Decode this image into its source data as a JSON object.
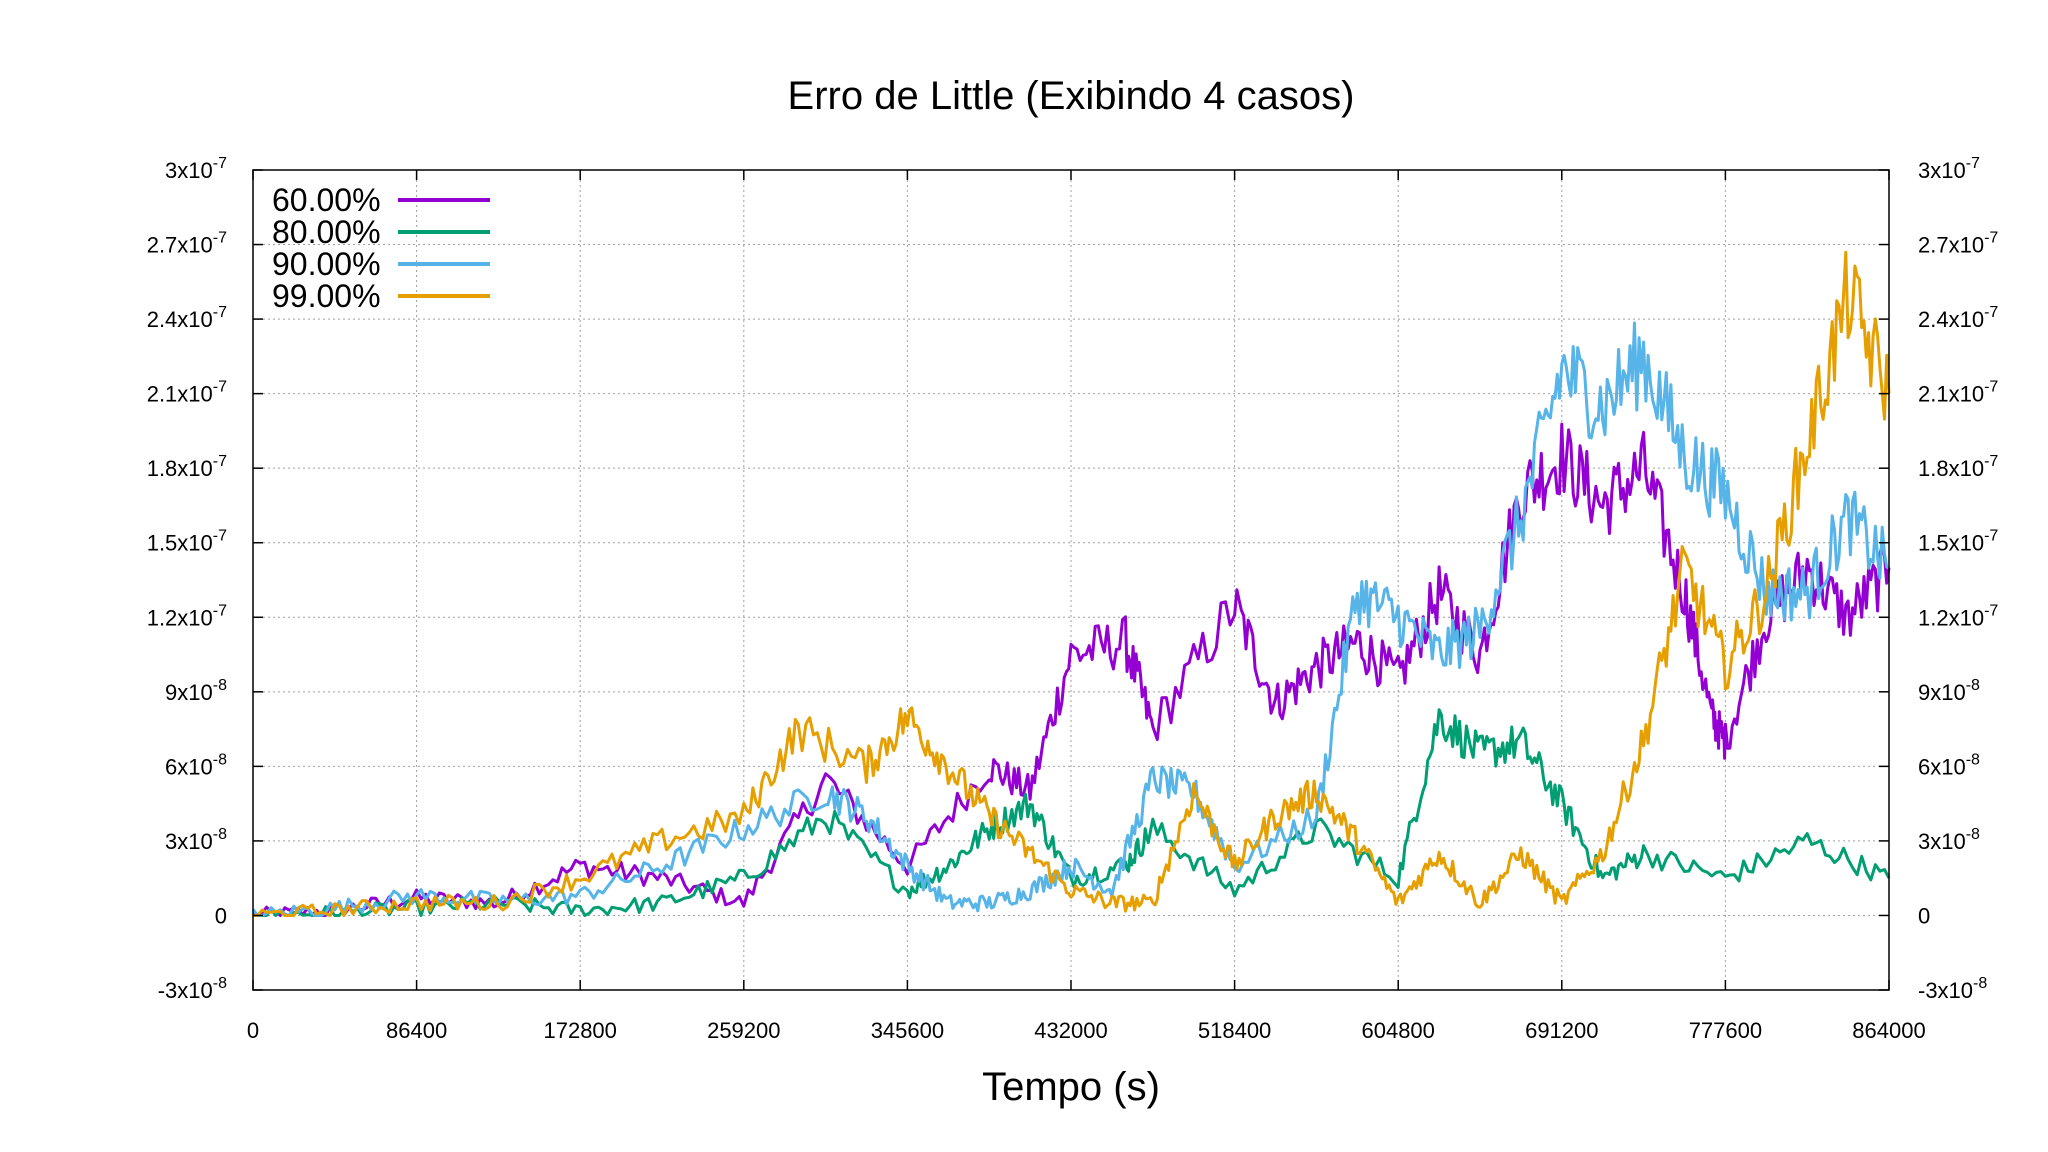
{
  "chart_data": {
    "type": "line",
    "title": "Erro de Little (Exibindo 4 casos)",
    "xlabel": "Tempo (s)",
    "ylabel": "",
    "xlim": [
      0,
      864000
    ],
    "ylim": [
      -3e-08,
      3e-07
    ],
    "x_ticks": [
      "0",
      "86400",
      "172800",
      "259200",
      "345600",
      "432000",
      "518400",
      "604800",
      "691200",
      "777600",
      "864000"
    ],
    "y_ticks": [
      {
        "base": "-3x10",
        "exp": "-8",
        "value": -3e-08
      },
      {
        "base": "0",
        "exp": "",
        "value": 0
      },
      {
        "base": "3x10",
        "exp": "-8",
        "value": 3e-08
      },
      {
        "base": "6x10",
        "exp": "-8",
        "value": 6e-08
      },
      {
        "base": "9x10",
        "exp": "-8",
        "value": 9e-08
      },
      {
        "base": "1.2x10",
        "exp": "-7",
        "value": 1.2e-07
      },
      {
        "base": "1.5x10",
        "exp": "-7",
        "value": 1.5e-07
      },
      {
        "base": "1.8x10",
        "exp": "-7",
        "value": 1.8e-07
      },
      {
        "base": "2.1x10",
        "exp": "-7",
        "value": 2.1e-07
      },
      {
        "base": "2.4x10",
        "exp": "-7",
        "value": 2.4e-07
      },
      {
        "base": "2.7x10",
        "exp": "-7",
        "value": 2.7e-07
      },
      {
        "base": "3x10",
        "exp": "-7",
        "value": 3e-07
      }
    ],
    "grid": true,
    "legend_position": "top-left",
    "series": [
      {
        "name": "60.00%",
        "color": "#9400d3",
        "x": [
          0,
          43200,
          86400,
          129600,
          172800,
          216000,
          259200,
          302400,
          345600,
          388800,
          410400,
          432000,
          460800,
          475200,
          518400,
          540000,
          561600,
          583200,
          604800,
          626400,
          648000,
          669600,
          691200,
          712800,
          734400,
          756000,
          770400,
          777600,
          799200,
          820800,
          842400,
          864000
        ],
        "y": [
          0,
          2e-09,
          7e-09,
          5e-09,
          2e-08,
          1.5e-08,
          5e-09,
          5.5e-08,
          2e-08,
          6e-08,
          5e-08,
          1.05e-07,
          1.1e-07,
          7.5e-08,
          1.25e-07,
          8.5e-08,
          1e-07,
          1.1e-07,
          9.5e-08,
          1.3e-07,
          1.05e-07,
          1.7e-07,
          1.85e-07,
          1.65e-07,
          1.8e-07,
          1.3e-07,
          8e-08,
          7e-08,
          1.2e-07,
          1.4e-07,
          1.2e-07,
          1.4e-07
        ]
      },
      {
        "name": "80.00%",
        "color": "#009e73",
        "x": [
          0,
          43200,
          86400,
          129600,
          172800,
          216000,
          259200,
          302400,
          345600,
          367200,
          388800,
          410400,
          432000,
          460800,
          475200,
          518400,
          561600,
          604800,
          626400,
          648000,
          669600,
          691200,
          712800,
          734400,
          777600,
          820800,
          864000
        ],
        "y": [
          0,
          1e-09,
          3e-09,
          5e-09,
          2e-09,
          5e-09,
          1.5e-08,
          4e-08,
          1e-08,
          2e-08,
          3.5e-08,
          4.5e-08,
          1.5e-08,
          2e-08,
          3.5e-08,
          1e-08,
          3.5e-08,
          1.5e-08,
          8e-08,
          6.5e-08,
          7e-08,
          4.5e-08,
          1.5e-08,
          2.5e-08,
          1.5e-08,
          3e-08,
          1.5e-08
        ]
      },
      {
        "name": "90.00%",
        "color": "#56b4e9",
        "x": [
          0,
          43200,
          86400,
          129600,
          172800,
          216000,
          259200,
          302400,
          324000,
          345600,
          367200,
          388800,
          410400,
          432000,
          453600,
          475200,
          496800,
          518400,
          561600,
          583200,
          604800,
          626400,
          648000,
          669600,
          691200,
          712800,
          734400,
          756000,
          777600,
          799200,
          820800,
          842400,
          864000
        ],
        "y": [
          0,
          3e-09,
          8e-09,
          6e-09,
          8e-09,
          2e-08,
          3.5e-08,
          5e-08,
          4e-08,
          2e-08,
          5e-09,
          5e-09,
          1e-08,
          2e-08,
          1e-08,
          5.5e-08,
          5e-08,
          2e-08,
          4e-08,
          1.3e-07,
          1.2e-07,
          1.05e-07,
          1.15e-07,
          1.6e-07,
          2.2e-07,
          2.05e-07,
          2.25e-07,
          1.85e-07,
          1.7e-07,
          1.3e-07,
          1.3e-07,
          1.6e-07,
          1.4e-07
        ]
      },
      {
        "name": "99.00%",
        "color": "#e69f00",
        "x": [
          0,
          43200,
          86400,
          129600,
          172800,
          216000,
          259200,
          288000,
          324000,
          345600,
          367200,
          388800,
          410400,
          432000,
          453600,
          475200,
          496800,
          518400,
          540000,
          561600,
          583200,
          604800,
          626400,
          648000,
          669600,
          691200,
          712800,
          734400,
          756000,
          777600,
          799200,
          820800,
          842400,
          864000
        ],
        "y": [
          0,
          2e-09,
          5e-09,
          5e-09,
          1.5e-08,
          3e-08,
          4e-08,
          7.5e-08,
          6e-08,
          8e-08,
          6e-08,
          4e-08,
          2.5e-08,
          1e-08,
          5e-09,
          5e-09,
          5e-08,
          2e-08,
          4e-08,
          5e-08,
          3e-08,
          5e-09,
          2.5e-08,
          5e-09,
          2.5e-08,
          5e-09,
          2.5e-08,
          7e-08,
          1.4e-07,
          1e-07,
          1.3e-07,
          1.9e-07,
          2.5e-07,
          2.1e-07
        ]
      }
    ]
  }
}
